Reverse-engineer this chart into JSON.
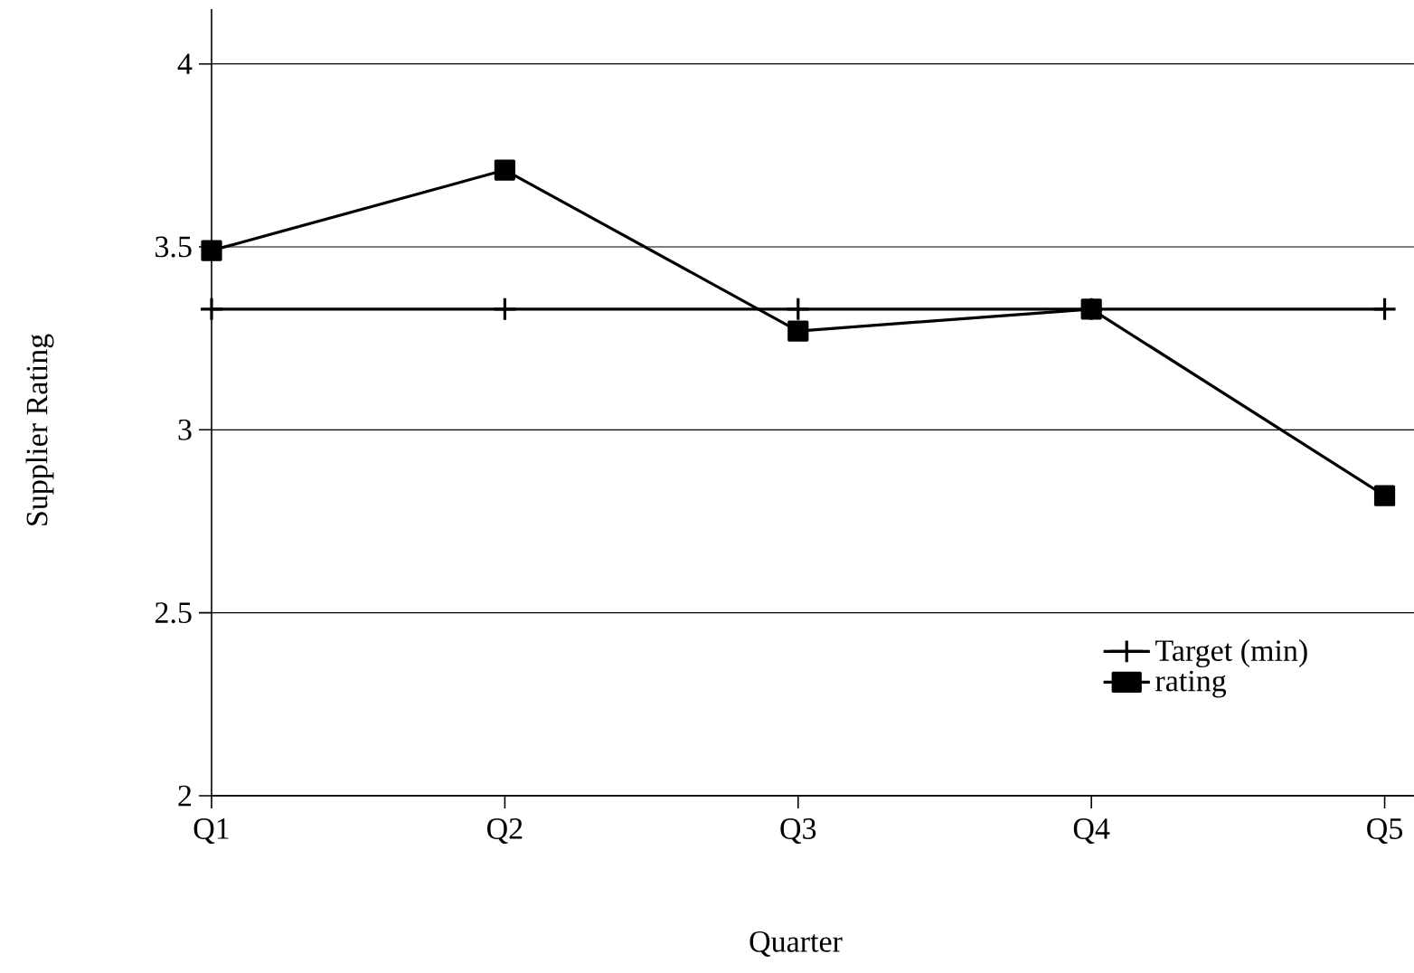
{
  "chart_data": {
    "type": "line",
    "xlabel": "Quarter",
    "ylabel": "Supplier Rating",
    "categories": [
      "Q1",
      "Q2",
      "Q3",
      "Q4",
      "Q5"
    ],
    "series": [
      {
        "name": "Target (min)",
        "color": "#000000",
        "marker": "cross",
        "values": [
          3.33,
          3.33,
          3.33,
          3.33,
          3.33
        ]
      },
      {
        "name": "rating",
        "color": "#000000",
        "marker": "square",
        "values": [
          3.49,
          3.71,
          3.27,
          3.33,
          2.82
        ]
      }
    ],
    "ylim": [
      2,
      4.15
    ],
    "yticks": [
      2,
      2.5,
      3,
      3.5,
      4
    ],
    "grid": "y",
    "legend": "bottom right",
    "line_style": "solid"
  }
}
